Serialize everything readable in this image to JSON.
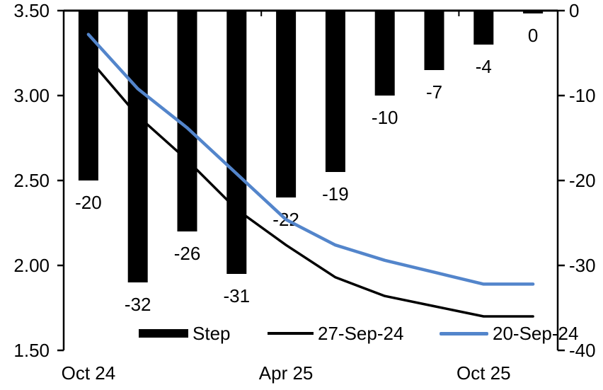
{
  "chart_data": {
    "type": "combo",
    "title": "",
    "background_color": "#FFFFFF",
    "text_color": "#000000",
    "n_categories": 10,
    "x_axis": {
      "tick_labels": [
        "Oct 24",
        "Apr 25",
        "Oct 25"
      ],
      "tick_label_category_indexes": [
        0,
        4,
        8
      ],
      "boundary_tick_category_indexes": [
        4,
        8
      ],
      "axis_position": "zero-top"
    },
    "left_axis": {
      "min": 1.5,
      "max": 3.5,
      "tick_labels": [
        "3.50",
        "3.00",
        "2.50",
        "2.00",
        "1.50"
      ]
    },
    "right_axis": {
      "min": -40,
      "max": 0,
      "tick_labels": [
        "0",
        "-10",
        "-20",
        "-30",
        "-40"
      ]
    },
    "bar_series": {
      "name": "Step",
      "color": "#000000",
      "axis": "right",
      "values": [
        -20,
        -32,
        -26,
        -31,
        -22,
        -19,
        -10,
        -7,
        -4,
        0
      ],
      "data_labels": [
        "-20",
        "-32",
        "-26",
        "-31",
        "-22",
        "-19",
        "-10",
        "-7",
        "-4",
        "0"
      ]
    },
    "line_series": [
      {
        "name": "27-Sep-24",
        "color": "#000000",
        "axis": "left",
        "z_order": "behind-bars",
        "values": [
          3.22,
          2.88,
          2.62,
          2.33,
          2.12,
          1.93,
          1.82,
          1.76,
          1.7,
          1.7
        ]
      },
      {
        "name": "20-Sep-24",
        "color": "#5385CB",
        "axis": "left",
        "z_order": "in-front-of-bars",
        "values": [
          3.36,
          3.04,
          2.81,
          2.54,
          2.27,
          2.12,
          2.03,
          1.96,
          1.89,
          1.89
        ]
      }
    ],
    "legend": {
      "position": "bottom",
      "items": [
        "Step",
        "27-Sep-24",
        "20-Sep-24"
      ]
    },
    "grid": "off"
  }
}
